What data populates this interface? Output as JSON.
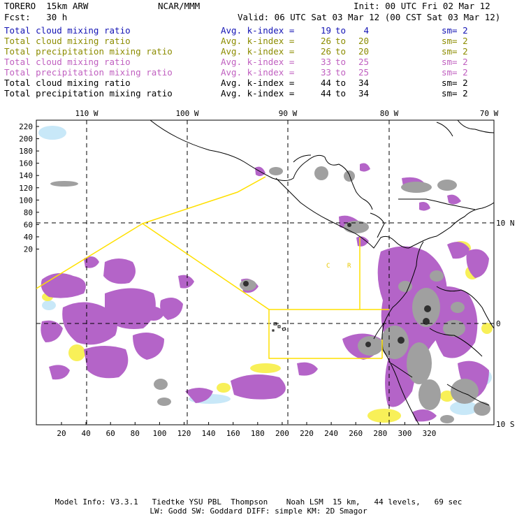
{
  "header": {
    "model": "TORERO  15km ARW",
    "center": "NCAR/MMM",
    "init": "Init: 00 UTC Fri 02 Mar 12",
    "fcst": "Fcst:   30 h",
    "valid": "Valid: 06 UTC Sat 03 Mar 12 (00 CST Sat 03 Mar 12)"
  },
  "legend": [
    {
      "name": "Total cloud mixing ratio",
      "avg": "Avg. k-index =",
      "v1": "19",
      "to": "to",
      "v2": "4",
      "sm": "sm= 2",
      "color": "#1414b4"
    },
    {
      "name": "Total cloud mixing ratio",
      "avg": "Avg. k-index =",
      "v1": "26",
      "to": "to",
      "v2": "20",
      "sm": "sm= 2",
      "color": "#8c8c00"
    },
    {
      "name": "Total precipitation mixing ratio",
      "avg": "Avg. k-index =",
      "v1": "26",
      "to": "to",
      "v2": "20",
      "sm": "sm= 2",
      "color": "#8c8c00"
    },
    {
      "name": "Total cloud mixing ratio",
      "avg": "Avg. k-index =",
      "v1": "33",
      "to": "to",
      "v2": "25",
      "sm": "sm= 2",
      "color": "#c060c0"
    },
    {
      "name": "Total precipitation mixing ratio",
      "avg": "Avg. k-index =",
      "v1": "33",
      "to": "to",
      "v2": "25",
      "sm": "sm= 2",
      "color": "#c060c0"
    },
    {
      "name": "Total cloud mixing ratio",
      "avg": "Avg. k-index =",
      "v1": "44",
      "to": "to",
      "v2": "34",
      "sm": "sm= 2",
      "color": "#000000"
    },
    {
      "name": "Total precipitation mixing ratio",
      "avg": "Avg. k-index =",
      "v1": "44",
      "to": "to",
      "v2": "34",
      "sm": "sm= 2",
      "color": "#000000"
    }
  ],
  "map": {
    "top_lon_labels": [
      "110 W",
      "100 W",
      "90 W",
      "80 W",
      "70 W"
    ],
    "right_lat_labels": [
      "10 N",
      "0",
      "10 S"
    ],
    "y_ticks": [
      "220",
      "200",
      "180",
      "160",
      "140",
      "120",
      "100",
      "80",
      "60",
      "40",
      "20"
    ],
    "x_ticks": [
      "20",
      "40",
      "60",
      "80",
      "100",
      "120",
      "140",
      "160",
      "180",
      "200",
      "220",
      "240",
      "260",
      "280",
      "300",
      "320"
    ],
    "region_labels": [
      "C",
      "R"
    ],
    "colors": {
      "purple": "#b464c8",
      "gray": "#a0a0a0",
      "light_blue": "#c8e8f8",
      "yellow": "#f8f058",
      "grid": "#000000",
      "boundary": "#ffe000"
    }
  },
  "footer": {
    "line1": "Model Info: V3.3.1   Tiedtke YSU PBL  Thompson    Noah LSM  15 km,   44 levels,   69 sec",
    "line2": "LW: Godd SW: Goddard DIFF: simple KM: 2D Smagor"
  }
}
